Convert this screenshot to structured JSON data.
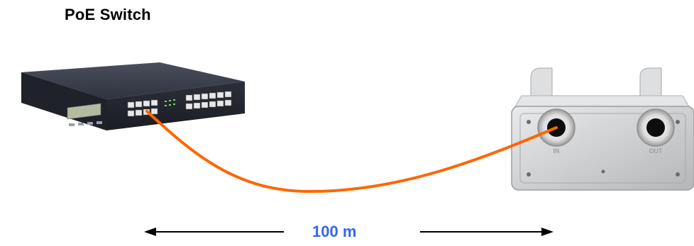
{
  "diagram": {
    "switch_title": "PoE Switch",
    "distance_label": "100 m",
    "port_in_label": "IN",
    "port_out_label": "OUT"
  },
  "colors": {
    "cable": "#ff6600",
    "distance_text": "#3366ee",
    "arrow": "#000000",
    "switch_body": "#2a2d38",
    "enclosure_body": "#c9cacc"
  },
  "icons": {
    "switch": "poe-switch-icon",
    "enclosure": "outdoor-enclosure-icon"
  }
}
